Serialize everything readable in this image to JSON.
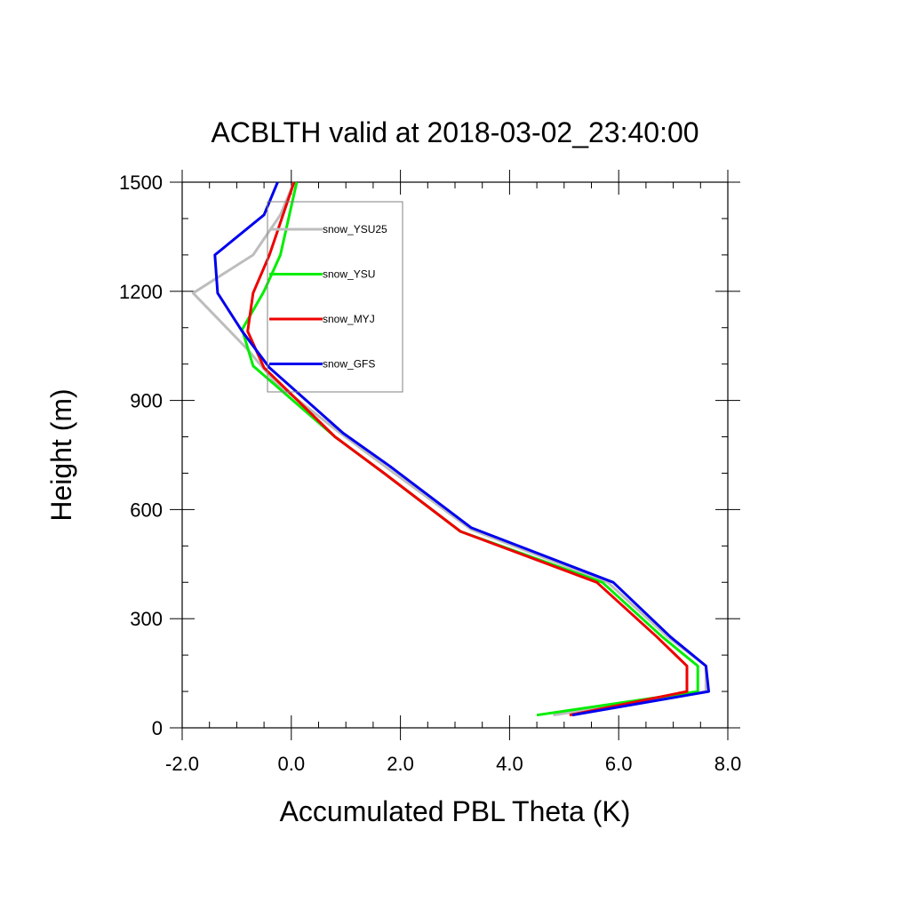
{
  "chart_data": {
    "type": "line",
    "title": "ACBLTH valid at 2018-03-02_23:40:00",
    "xlabel": "Accumulated PBL Theta (K)",
    "ylabel": "Height (m)",
    "xlim": [
      -2.0,
      8.0
    ],
    "ylim": [
      0,
      1500
    ],
    "xticks": [
      "-2.0",
      "0.0",
      "2.0",
      "4.0",
      "6.0",
      "8.0"
    ],
    "yticks": [
      "0",
      "300",
      "600",
      "900",
      "1200",
      "1500"
    ],
    "legend_position": "upper-left inside",
    "grid": false,
    "series": [
      {
        "name": "snow_YSU25",
        "color": "#bdbdbd",
        "points": [
          [
            4.8,
            35
          ],
          [
            7.6,
            100
          ],
          [
            7.6,
            170
          ],
          [
            6.9,
            250
          ],
          [
            5.8,
            400
          ],
          [
            3.3,
            545
          ],
          [
            1.8,
            710
          ],
          [
            0.9,
            810
          ],
          [
            -0.3,
            950
          ],
          [
            -0.8,
            1040
          ],
          [
            -1.8,
            1195
          ],
          [
            -0.7,
            1300
          ],
          [
            -0.2,
            1410
          ],
          [
            0.05,
            1500
          ]
        ]
      },
      {
        "name": "snow_YSU",
        "color": "#00ee00",
        "points": [
          [
            4.5,
            35
          ],
          [
            7.45,
            100
          ],
          [
            7.45,
            170
          ],
          [
            6.8,
            250
          ],
          [
            5.7,
            400
          ],
          [
            3.1,
            540
          ],
          [
            1.7,
            700
          ],
          [
            0.8,
            800
          ],
          [
            -0.7,
            995
          ],
          [
            -0.9,
            1095
          ],
          [
            -0.5,
            1200
          ],
          [
            -0.2,
            1300
          ],
          [
            0.1,
            1500
          ]
        ]
      },
      {
        "name": "snow_MYJ",
        "color": "#ee0000",
        "points": [
          [
            5.1,
            35
          ],
          [
            7.25,
            100
          ],
          [
            7.25,
            170
          ],
          [
            6.7,
            250
          ],
          [
            5.6,
            400
          ],
          [
            3.1,
            540
          ],
          [
            1.7,
            700
          ],
          [
            0.8,
            800
          ],
          [
            -0.5,
            990
          ],
          [
            -0.8,
            1090
          ],
          [
            -0.7,
            1195
          ],
          [
            -0.4,
            1300
          ],
          [
            0.05,
            1500
          ]
        ]
      },
      {
        "name": "snow_GFS",
        "color": "#0000ee",
        "points": [
          [
            5.15,
            35
          ],
          [
            7.65,
            100
          ],
          [
            7.6,
            170
          ],
          [
            6.95,
            250
          ],
          [
            5.9,
            400
          ],
          [
            3.3,
            550
          ],
          [
            1.8,
            720
          ],
          [
            0.95,
            810
          ],
          [
            -0.4,
            990
          ],
          [
            -0.9,
            1090
          ],
          [
            -1.35,
            1195
          ],
          [
            -1.4,
            1300
          ],
          [
            -0.5,
            1410
          ],
          [
            -0.25,
            1500
          ]
        ]
      }
    ]
  }
}
